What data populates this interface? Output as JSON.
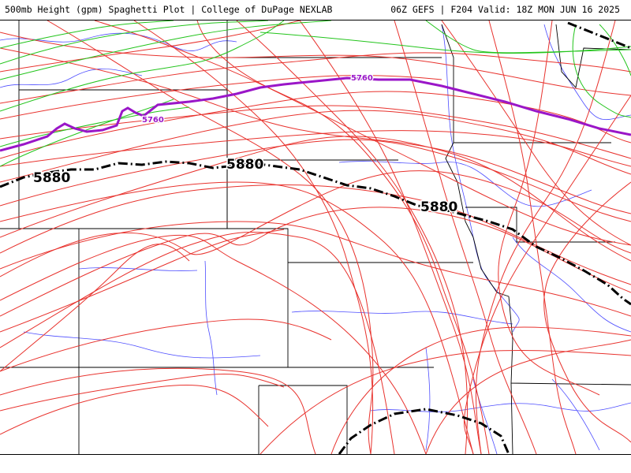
{
  "header": {
    "title": "500mb Height (gpm) Spaghetti Plot | College of DuPage NEXLAB",
    "run_info": "06Z GEFS | F204 Valid: 18Z MON JUN 16 2025"
  },
  "contours": {
    "labels": [
      "5880",
      "5760"
    ]
  },
  "colors": {
    "member_5880": "#e8322d",
    "member_5760": "#22c41b",
    "mean_5760": "#9a16c8",
    "mean_5880": "#000000",
    "state_lines": "#000000",
    "rivers": "#4d4dff",
    "background": "#ffffff"
  }
}
